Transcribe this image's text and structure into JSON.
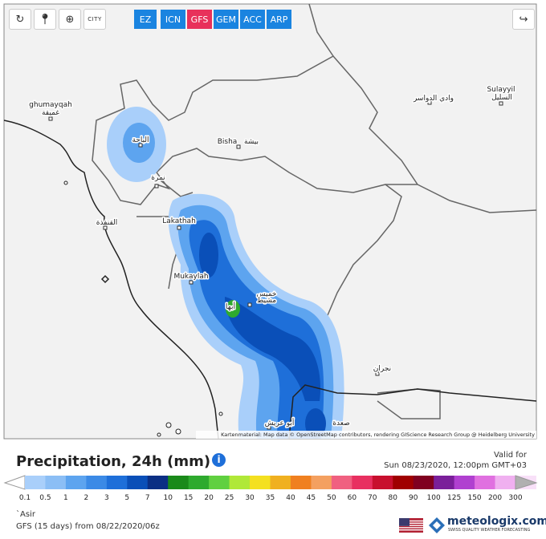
{
  "toolbar": {
    "city_label": "CITY",
    "models": [
      "EZ",
      "ICN",
      "GFS",
      "GEM",
      "ACC",
      "ARP"
    ],
    "selected_model": "GFS"
  },
  "map": {
    "places": [
      {
        "name": "ghumayqah",
        "native": "غميقة"
      },
      {
        "name": "الباحة"
      },
      {
        "name": "Bisha",
        "native": "بيشة"
      },
      {
        "name": "وادي الدواسر"
      },
      {
        "name": "Sulayyil",
        "native": "السليل"
      },
      {
        "name": "نمرة"
      },
      {
        "name": "القنفذة"
      },
      {
        "name": "Lakathah"
      },
      {
        "name": "Mukaylah"
      },
      {
        "name": "خميس",
        "native": "مشيط"
      },
      {
        "name": "أبها"
      },
      {
        "name": "نجران"
      },
      {
        "name": "أبو عريش"
      },
      {
        "name": "صعدة"
      }
    ],
    "attribution": "Kartenmaterial: Map data © OpenStreetMap contributors, rendering GIScience Research Group @ Heidelberg University"
  },
  "legend": {
    "title": "Precipitation, 24h (mm)",
    "valid_label": "Valid for",
    "valid_time": "Sun 08/23/2020, 12:00pm GMT+03",
    "scale": [
      0.1,
      0.5,
      1,
      2,
      3,
      5,
      7,
      10,
      15,
      20,
      25,
      30,
      35,
      40,
      45,
      50,
      60,
      70,
      80,
      90,
      100,
      125,
      150,
      200,
      300
    ],
    "colors": [
      "#a9cffa",
      "#8bbef5",
      "#5da4ef",
      "#3b8ae6",
      "#1e6fd9",
      "#0a4fb8",
      "#0b2f84",
      "#1a8a1a",
      "#2eaa2e",
      "#60d040",
      "#b0e838",
      "#f4e020",
      "#f0b020",
      "#f08020",
      "#f4a060",
      "#f06080",
      "#e83060",
      "#c8102e",
      "#a00000",
      "#800020",
      "#7a1f9a",
      "#b040d0",
      "#e070e0",
      "#f0b0f0",
      "#f8e0f8"
    ]
  },
  "footer": {
    "region": "`Asir",
    "run": "GFS (15 days) from 08/22/2020/06z",
    "brand": "meteologix.com",
    "tagline": "SWISS QUALITY WEATHER FORECASTING"
  }
}
